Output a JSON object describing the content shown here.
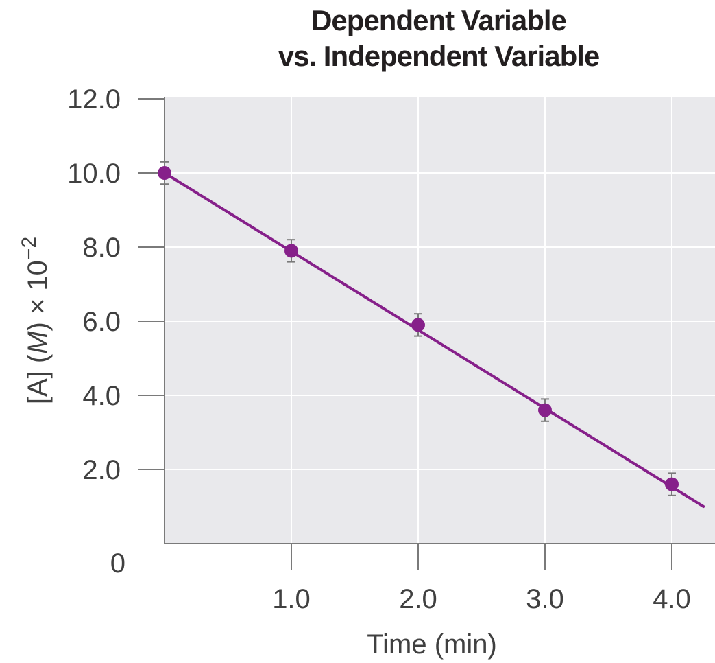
{
  "chart_data": {
    "type": "line",
    "title_line1": "Dependent Variable",
    "title_line2": "vs. Independent Variable",
    "xlabel": "Time (min)",
    "ylabel_main": "[A] (",
    "ylabel_italic": "M",
    "ylabel_rest": ") × 10",
    "ylabel_exp": "−2",
    "xlim": [
      0,
      4.3
    ],
    "ylim": [
      0,
      12.0
    ],
    "x_ticks": [
      1.0,
      2.0,
      3.0,
      4.0
    ],
    "x_tick_labels": [
      "1.0",
      "2.0",
      "3.0",
      "4.0"
    ],
    "y_ticks": [
      2.0,
      4.0,
      6.0,
      8.0,
      10.0,
      12.0
    ],
    "y_tick_labels": [
      "2.0",
      "4.0",
      "6.0",
      "8.0",
      "10.0",
      "12.0"
    ],
    "y_zero_label": "0",
    "grid": true,
    "series": [
      {
        "name": "[A]",
        "x": [
          0,
          1.0,
          2.0,
          3.0,
          4.0
        ],
        "y": [
          10.0,
          7.9,
          5.9,
          3.6,
          1.6
        ],
        "error": [
          0.3,
          0.3,
          0.3,
          0.3,
          0.3
        ]
      }
    ],
    "fit_line": {
      "x": [
        0,
        4.25
      ],
      "y": [
        10.0,
        1.0
      ]
    },
    "colors": {
      "series": "#86208a",
      "plot_bg": "#e9e9ec",
      "axis": "#7a7a7a",
      "grid": "#ffffff",
      "text": "#404040"
    }
  }
}
